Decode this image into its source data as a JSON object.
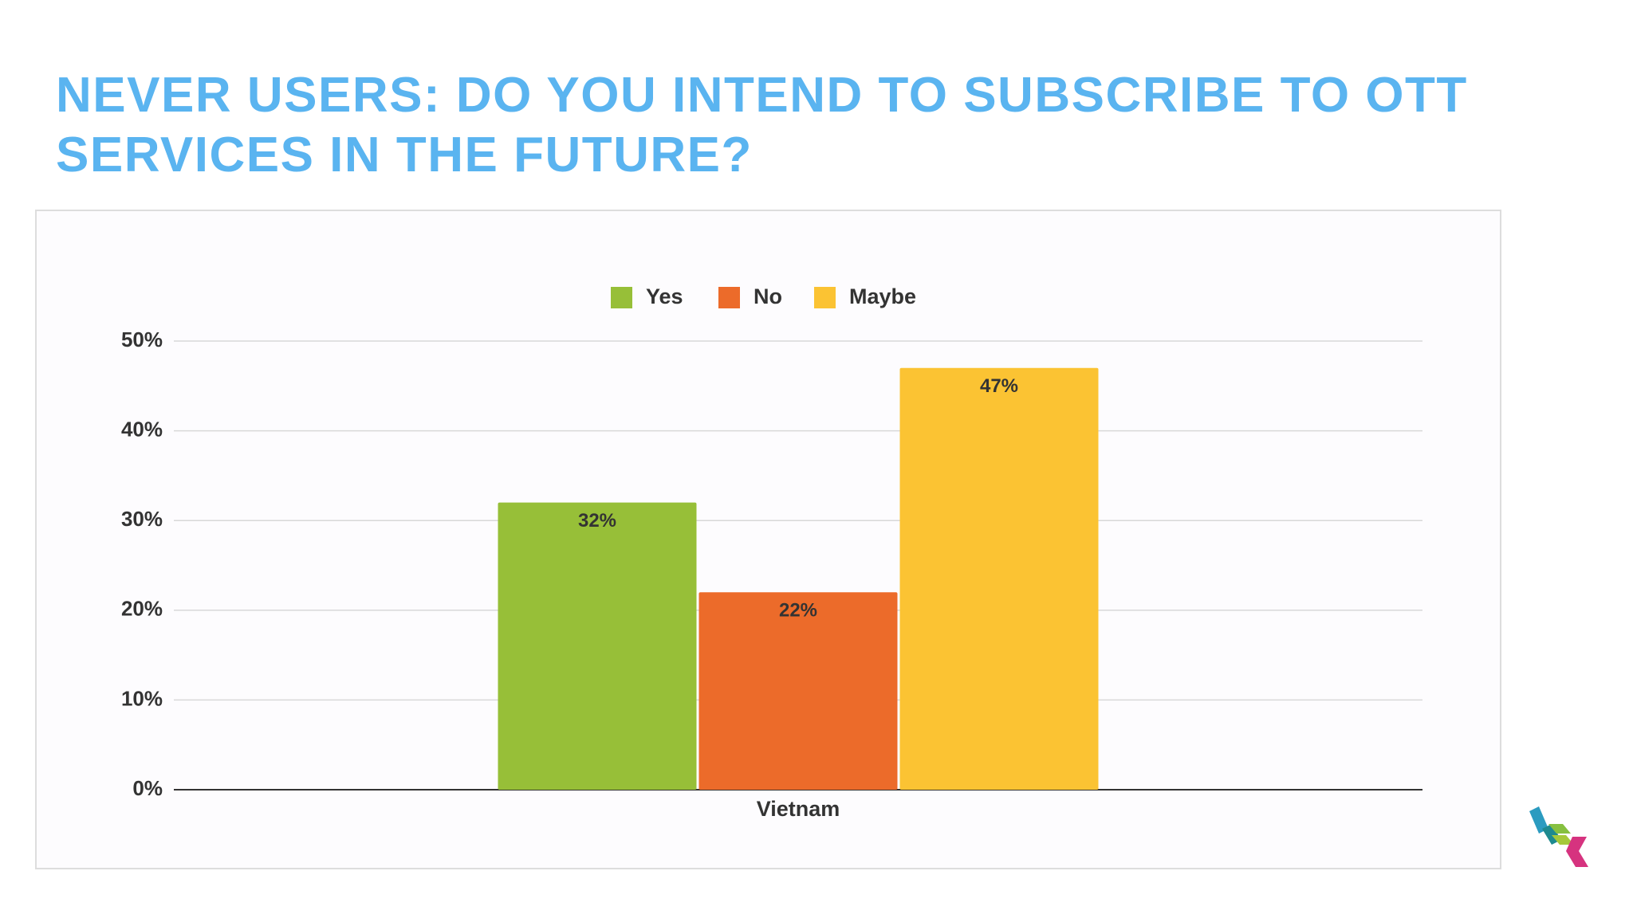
{
  "chart_data": {
    "type": "bar",
    "title": "NEVER USERS: DO YOU INTEND TO SUBSCRIBE TO OTT SERVICES IN THE FUTURE?",
    "categories": [
      "Vietnam"
    ],
    "series": [
      {
        "name": "Yes",
        "color": "#97bf38",
        "values": [
          32
        ],
        "value_labels": [
          "32%"
        ]
      },
      {
        "name": "No",
        "color": "#ec6b2a",
        "values": [
          22
        ],
        "value_labels": [
          "22%"
        ]
      },
      {
        "name": "Maybe",
        "color": "#fbc333",
        "values": [
          47
        ],
        "value_labels": [
          "47%"
        ]
      }
    ],
    "ylim": [
      0,
      50
    ],
    "yticks": [
      {
        "value": 0,
        "label": "0%"
      },
      {
        "value": 10,
        "label": "10%"
      },
      {
        "value": 20,
        "label": "20%"
      },
      {
        "value": 30,
        "label": "30%"
      },
      {
        "value": 40,
        "label": "40%"
      },
      {
        "value": 50,
        "label": "50%"
      }
    ],
    "grid": true,
    "legend": "top"
  }
}
